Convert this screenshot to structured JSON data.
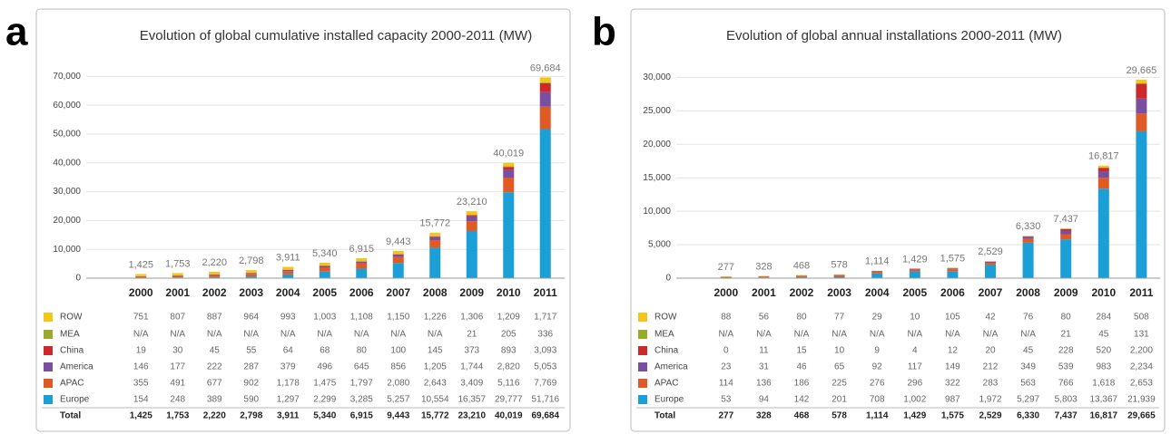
{
  "chart_data": [
    {
      "type": "bar",
      "stacked": true,
      "panel": "a",
      "title": "Evolution of global cumulative installed capacity 2000-2011 (MW)",
      "categories": [
        "2000",
        "2001",
        "2002",
        "2003",
        "2004",
        "2005",
        "2006",
        "2007",
        "2008",
        "2009",
        "2010",
        "2011"
      ],
      "ylim": [
        0,
        72000
      ],
      "yticks": [
        0,
        {
          "value": 10000,
          "label": "10,000"
        },
        {
          "value": 20000,
          "label": "20,000"
        },
        {
          "value": 30000,
          "label": "30,000"
        },
        {
          "value": 40000,
          "label": "40,000"
        },
        {
          "value": 50000,
          "label": "50,000"
        },
        {
          "value": 60000,
          "label": "60,000"
        },
        {
          "value": 70000,
          "label": "70,000"
        }
      ],
      "grid": true,
      "series": [
        {
          "name": "ROW",
          "color": "#f5c518",
          "values": [
            751,
            807,
            887,
            964,
            993,
            1003,
            1108,
            1150,
            1226,
            1306,
            1209,
            1717
          ],
          "value_labels": [
            "751",
            "807",
            "887",
            "964",
            "993",
            "1,003",
            "1,108",
            "1,150",
            "1,226",
            "1,306",
            "1,209",
            "1,717"
          ]
        },
        {
          "name": "MEA",
          "color": "#9aaa2a",
          "values": [
            null,
            null,
            null,
            null,
            null,
            null,
            null,
            null,
            null,
            21,
            205,
            336
          ],
          "value_labels": [
            "N/A",
            "N/A",
            "N/A",
            "N/A",
            "N/A",
            "N/A",
            "N/A",
            "N/A",
            "N/A",
            "21",
            "205",
            "336"
          ]
        },
        {
          "name": "China",
          "color": "#cc2a2a",
          "values": [
            19,
            30,
            45,
            55,
            64,
            68,
            80,
            100,
            145,
            373,
            893,
            3093
          ],
          "value_labels": [
            "19",
            "30",
            "45",
            "55",
            "64",
            "68",
            "80",
            "100",
            "145",
            "373",
            "893",
            "3,093"
          ]
        },
        {
          "name": "America",
          "color": "#7b4fa0",
          "values": [
            146,
            177,
            222,
            287,
            379,
            496,
            645,
            856,
            1205,
            1744,
            2820,
            5053
          ],
          "value_labels": [
            "146",
            "177",
            "222",
            "287",
            "379",
            "496",
            "645",
            "856",
            "1,205",
            "1,744",
            "2,820",
            "5,053"
          ]
        },
        {
          "name": "APAC",
          "color": "#e05a25",
          "values": [
            355,
            491,
            677,
            902,
            1178,
            1475,
            1797,
            2080,
            2643,
            3409,
            5116,
            7769
          ],
          "value_labels": [
            "355",
            "491",
            "677",
            "902",
            "1,178",
            "1,475",
            "1,797",
            "2,080",
            "2,643",
            "3,409",
            "5,116",
            "7,769"
          ]
        },
        {
          "name": "Europe",
          "color": "#1a9fd6",
          "values": [
            154,
            248,
            389,
            590,
            1297,
            2299,
            3285,
            5257,
            10554,
            16357,
            29777,
            51716
          ],
          "value_labels": [
            "154",
            "248",
            "389",
            "590",
            "1,297",
            "2,299",
            "3,285",
            "5,257",
            "10,554",
            "16,357",
            "29,777",
            "51,716"
          ]
        }
      ],
      "totals": {
        "name": "Total",
        "values": [
          1425,
          1753,
          2220,
          2798,
          3911,
          5340,
          6915,
          9443,
          15772,
          23210,
          40019,
          69684
        ],
        "value_labels": [
          "1,425",
          "1,753",
          "2,220",
          "2,798",
          "3,911",
          "5,340",
          "6,915",
          "9,443",
          "15,772",
          "23,210",
          "40,019",
          "69,684"
        ]
      }
    },
    {
      "type": "bar",
      "stacked": true,
      "panel": "b",
      "title": "Evolution of global annual installations 2000-2011 (MW)",
      "categories": [
        "2000",
        "2001",
        "2002",
        "2003",
        "2004",
        "2005",
        "2006",
        "2007",
        "2008",
        "2009",
        "2010",
        "2011"
      ],
      "ylim": [
        0,
        31000
      ],
      "yticks": [
        0,
        {
          "value": 5000,
          "label": "5,000"
        },
        {
          "value": 10000,
          "label": "10,000"
        },
        {
          "value": 15000,
          "label": "15,000"
        },
        {
          "value": 20000,
          "label": "20,000"
        },
        {
          "value": 25000,
          "label": "25,000"
        },
        {
          "value": 30000,
          "label": "30,000"
        }
      ],
      "grid": true,
      "series": [
        {
          "name": "ROW",
          "color": "#f5c518",
          "values": [
            88,
            56,
            80,
            77,
            29,
            10,
            105,
            42,
            76,
            80,
            284,
            508
          ],
          "value_labels": [
            "88",
            "56",
            "80",
            "77",
            "29",
            "10",
            "105",
            "42",
            "76",
            "80",
            "284",
            "508"
          ]
        },
        {
          "name": "MEA",
          "color": "#9aaa2a",
          "values": [
            null,
            null,
            null,
            null,
            null,
            null,
            null,
            null,
            null,
            21,
            45,
            131
          ],
          "value_labels": [
            "N/A",
            "N/A",
            "N/A",
            "N/A",
            "N/A",
            "N/A",
            "N/A",
            "N/A",
            "N/A",
            "21",
            "45",
            "131"
          ]
        },
        {
          "name": "China",
          "color": "#cc2a2a",
          "values": [
            0,
            11,
            15,
            10,
            9,
            4,
            12,
            20,
            45,
            228,
            520,
            2200
          ],
          "value_labels": [
            "0",
            "11",
            "15",
            "10",
            "9",
            "4",
            "12",
            "20",
            "45",
            "228",
            "520",
            "2,200"
          ]
        },
        {
          "name": "America",
          "color": "#7b4fa0",
          "values": [
            23,
            31,
            46,
            65,
            92,
            117,
            149,
            212,
            349,
            539,
            983,
            2234
          ],
          "value_labels": [
            "23",
            "31",
            "46",
            "65",
            "92",
            "117",
            "149",
            "212",
            "349",
            "539",
            "983",
            "2,234"
          ]
        },
        {
          "name": "APAC",
          "color": "#e05a25",
          "values": [
            114,
            136,
            186,
            225,
            276,
            296,
            322,
            283,
            563,
            766,
            1618,
            2653
          ],
          "value_labels": [
            "114",
            "136",
            "186",
            "225",
            "276",
            "296",
            "322",
            "283",
            "563",
            "766",
            "1,618",
            "2,653"
          ]
        },
        {
          "name": "Europe",
          "color": "#1a9fd6",
          "values": [
            53,
            94,
            142,
            201,
            708,
            1002,
            987,
            1972,
            5297,
            5803,
            13367,
            21939
          ],
          "value_labels": [
            "53",
            "94",
            "142",
            "201",
            "708",
            "1,002",
            "987",
            "1,972",
            "5,297",
            "5,803",
            "13,367",
            "21,939"
          ]
        }
      ],
      "totals": {
        "name": "Total",
        "values": [
          277,
          328,
          468,
          578,
          1114,
          1429,
          1575,
          2529,
          6330,
          7437,
          16817,
          29665
        ],
        "value_labels": [
          "277",
          "328",
          "468",
          "578",
          "1,114",
          "1,429",
          "1,575",
          "2,529",
          "6,330",
          "7,437",
          "16,817",
          "29,665"
        ]
      }
    }
  ]
}
